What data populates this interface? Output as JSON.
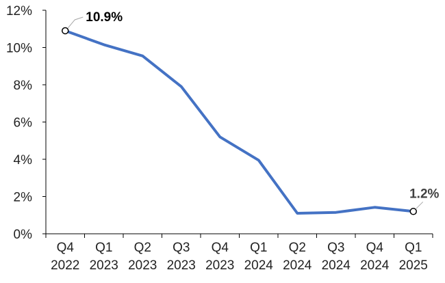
{
  "chart_data": {
    "type": "line",
    "categories": [
      [
        "Q4",
        "2022"
      ],
      [
        "Q1",
        "2023"
      ],
      [
        "Q2",
        "2023"
      ],
      [
        "Q3",
        "2023"
      ],
      [
        "Q4",
        "2023"
      ],
      [
        "Q1",
        "2024"
      ],
      [
        "Q2",
        "2024"
      ],
      [
        "Q3",
        "2024"
      ],
      [
        "Q4",
        "2024"
      ],
      [
        "Q1",
        "2025"
      ]
    ],
    "series": [
      {
        "values": [
          10.9,
          10.15,
          9.55,
          7.9,
          5.2,
          3.95,
          1.1,
          1.15,
          1.42,
          1.2
        ]
      }
    ],
    "ylim": [
      0,
      12
    ],
    "yticks": [
      0,
      2,
      4,
      6,
      8,
      10,
      12
    ],
    "ytick_labels": [
      "0%",
      "2%",
      "4%",
      "6%",
      "8%",
      "10%",
      "12%"
    ],
    "annotations": [
      {
        "index": 0,
        "label": "10.9%"
      },
      {
        "index": 9,
        "label": "1.2%"
      }
    ],
    "grid": false,
    "line_color": "#4472C4",
    "first_label_color": "#000000",
    "last_label_color": "#404040"
  }
}
